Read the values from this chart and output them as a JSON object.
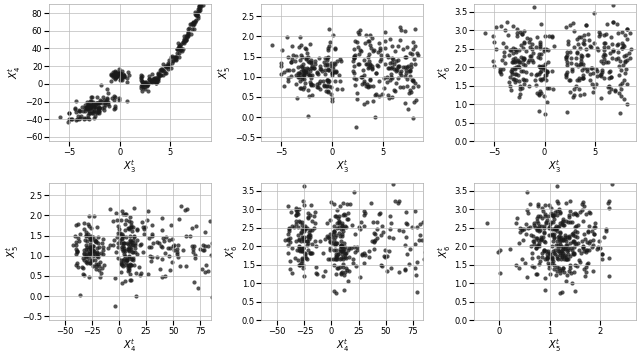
{
  "figsize": [
    6.4,
    3.58
  ],
  "dpi": 100,
  "markersize": 3,
  "color": "#1a1a1a",
  "alpha": 0.75,
  "grid": true,
  "grid_color": "#bbbbbb",
  "subplots": [
    {
      "row": 0,
      "col": 0,
      "xlabel": "$X_3^t$",
      "ylabel": "$X_4^t$",
      "xlim": [
        -7,
        9
      ],
      "ylim": [
        -65,
        90
      ]
    },
    {
      "row": 0,
      "col": 1,
      "xlabel": "$X_3^t$",
      "ylabel": "$X_5^t$",
      "xlim": [
        -7,
        9
      ],
      "ylim": [
        -0.6,
        2.8
      ]
    },
    {
      "row": 0,
      "col": 2,
      "xlabel": "$X_3^t$",
      "ylabel": "$X_6^t$",
      "xlim": [
        -7,
        9
      ],
      "ylim": [
        0.0,
        3.7
      ]
    },
    {
      "row": 1,
      "col": 0,
      "xlabel": "$X_4^t$",
      "ylabel": "$X_5^t$",
      "xlim": [
        -65,
        85
      ],
      "ylim": [
        -0.6,
        2.8
      ]
    },
    {
      "row": 1,
      "col": 1,
      "xlabel": "$X_4^t$",
      "ylabel": "$X_6^t$",
      "xlim": [
        -65,
        85
      ],
      "ylim": [
        0.0,
        3.7
      ]
    },
    {
      "row": 1,
      "col": 2,
      "xlabel": "$X_5^t$",
      "ylabel": "$X_6^t$",
      "xlim": [
        -0.5,
        2.7
      ],
      "ylim": [
        0.0,
        3.7
      ]
    }
  ],
  "seed": 42,
  "n_points": 350
}
